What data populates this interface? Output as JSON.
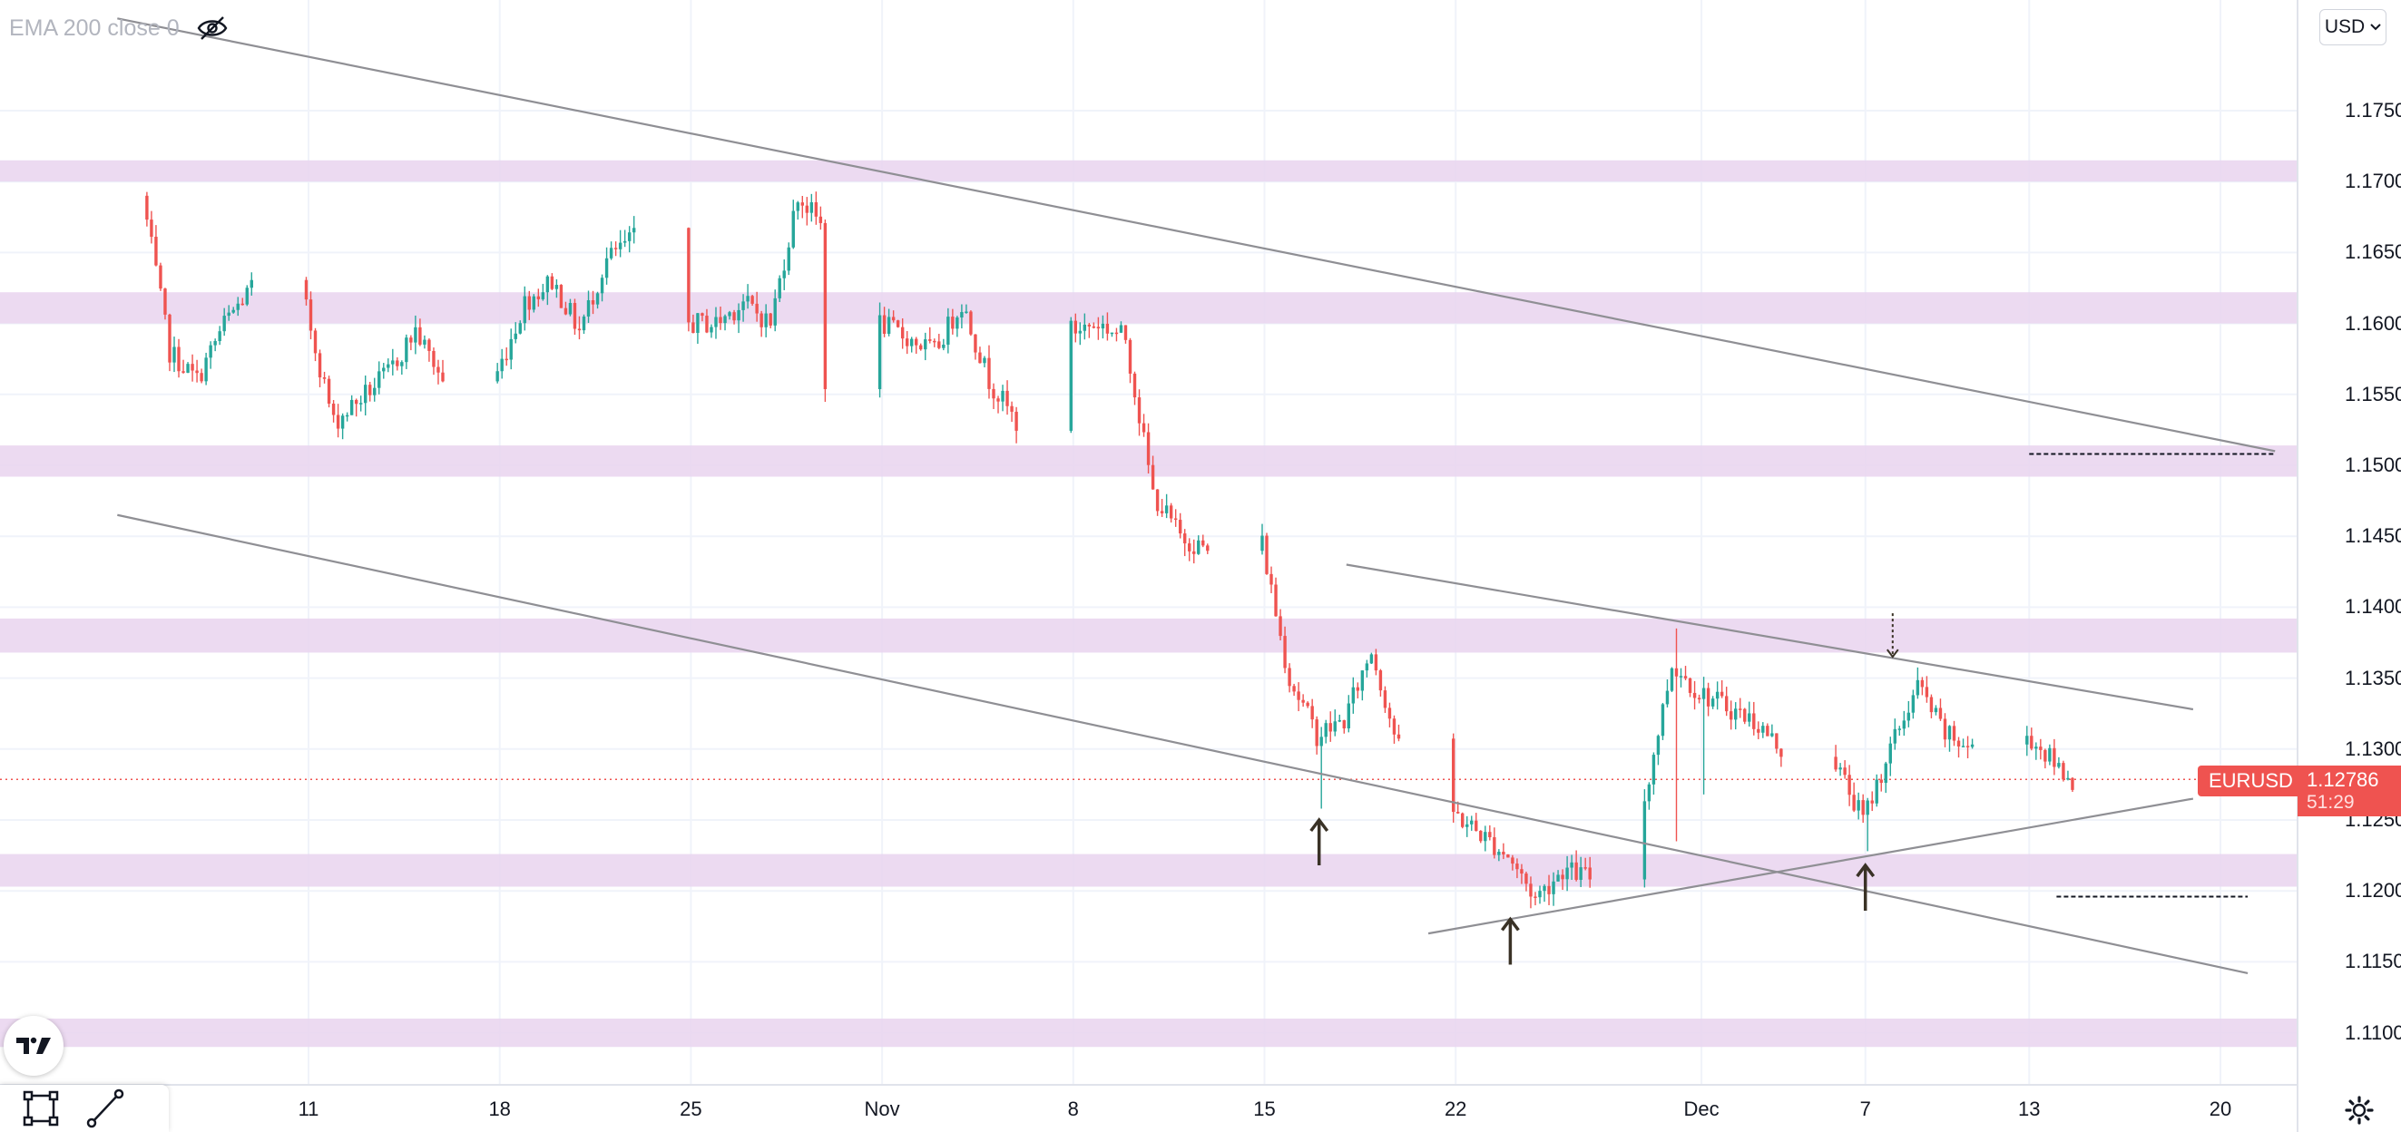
{
  "legend": {
    "indicator": "EMA 200 close 0"
  },
  "currency": {
    "label": "USD"
  },
  "symbol": {
    "name": "EURUSD",
    "last_price": "1.12786",
    "countdown": "51:29"
  },
  "colors": {
    "up": "#26a69a",
    "down": "#ef5350",
    "zone": "#e9d3ee",
    "trendline": "#8f8f94",
    "price_line": "#ef5350"
  },
  "icons": {
    "visibility": "eye-off-icon",
    "logo": "tradingview-logo-icon",
    "rectangle_tool": "rectangle-tool-icon",
    "trendline_tool": "trendline-tool-icon",
    "settings": "gear-icon",
    "currency_dropdown": "chevron-down-icon"
  },
  "chart_data": {
    "type": "candlestick",
    "interval": "4h",
    "ylim": [
      1.1075,
      1.1815
    ],
    "y_ticks": [
      "1.17500",
      "1.17000",
      "1.16500",
      "1.16000",
      "1.15500",
      "1.15000",
      "1.14500",
      "1.14000",
      "1.13500",
      "1.13000",
      "1.12500",
      "1.12000",
      "1.11500",
      "1.11000"
    ],
    "x_ticks": [
      {
        "label": "11",
        "date": "2021-10-11"
      },
      {
        "label": "18",
        "date": "2021-10-18"
      },
      {
        "label": "25",
        "date": "2021-10-25"
      },
      {
        "label": "Nov",
        "date": "2021-11-01"
      },
      {
        "label": "8",
        "date": "2021-11-08"
      },
      {
        "label": "15",
        "date": "2021-11-15"
      },
      {
        "label": "22",
        "date": "2021-11-22"
      },
      {
        "label": "Dec",
        "date": "2021-12-01"
      },
      {
        "label": "7",
        "date": "2021-12-07"
      },
      {
        "label": "13",
        "date": "2021-12-13"
      },
      {
        "label": "20",
        "date": "2021-12-20"
      }
    ],
    "waypoints": [
      {
        "date": "2021-10-05",
        "price": 1.169
      },
      {
        "date": "2021-10-06",
        "price": 1.158
      },
      {
        "date": "2021-10-07",
        "price": 1.156
      },
      {
        "date": "2021-10-08",
        "price": 1.16
      },
      {
        "date": "2021-10-09",
        "price": 1.1625
      },
      {
        "date": "2021-10-11",
        "price": 1.161
      },
      {
        "date": "2021-10-12",
        "price": 1.153
      },
      {
        "date": "2021-10-14",
        "price": 1.1565
      },
      {
        "date": "2021-10-15",
        "price": 1.1595
      },
      {
        "date": "2021-10-16",
        "price": 1.156
      },
      {
        "date": "2021-10-17",
        "price": 1.1535
      },
      {
        "date": "2021-10-18",
        "price": 1.1565
      },
      {
        "date": "2021-10-19",
        "price": 1.1615
      },
      {
        "date": "2021-10-20",
        "price": 1.163
      },
      {
        "date": "2021-10-21",
        "price": 1.1595
      },
      {
        "date": "2021-10-22",
        "price": 1.1645
      },
      {
        "date": "2021-10-23",
        "price": 1.166
      },
      {
        "date": "2021-10-24",
        "price": 1.1645
      },
      {
        "date": "2021-10-25",
        "price": 1.16
      },
      {
        "date": "2021-10-26",
        "price": 1.16
      },
      {
        "date": "2021-10-27",
        "price": 1.1615
      },
      {
        "date": "2021-10-28",
        "price": 1.16
      },
      {
        "date": "2021-10-29",
        "price": 1.169
      },
      {
        "date": "2021-10-29T20:00",
        "price": 1.167
      },
      {
        "date": "2021-10-30",
        "price": 1.156
      },
      {
        "date": "2021-11-01",
        "price": 1.16
      },
      {
        "date": "2021-11-03",
        "price": 1.158
      },
      {
        "date": "2021-11-04",
        "price": 1.1615
      },
      {
        "date": "2021-11-05",
        "price": 1.156
      },
      {
        "date": "2021-11-06",
        "price": 1.153
      },
      {
        "date": "2021-11-07",
        "price": 1.1565
      },
      {
        "date": "2021-11-08",
        "price": 1.1595
      },
      {
        "date": "2021-11-09",
        "price": 1.16
      },
      {
        "date": "2021-11-10",
        "price": 1.159
      },
      {
        "date": "2021-11-11",
        "price": 1.148
      },
      {
        "date": "2021-11-12",
        "price": 1.145
      },
      {
        "date": "2021-11-13",
        "price": 1.144
      },
      {
        "date": "2021-11-14",
        "price": 1.1455
      },
      {
        "date": "2021-11-15",
        "price": 1.1445
      },
      {
        "date": "2021-11-15T16:00",
        "price": 1.138
      },
      {
        "date": "2021-11-16",
        "price": 1.135
      },
      {
        "date": "2021-11-17",
        "price": 1.131
      },
      {
        "date": "2021-11-18",
        "price": 1.132
      },
      {
        "date": "2021-11-19",
        "price": 1.137
      },
      {
        "date": "2021-11-20",
        "price": 1.13
      },
      {
        "date": "2021-11-21",
        "price": 1.128
      },
      {
        "date": "2021-11-22",
        "price": 1.1255
      },
      {
        "date": "2021-11-23",
        "price": 1.124
      },
      {
        "date": "2021-11-24",
        "price": 1.1225
      },
      {
        "date": "2021-11-25",
        "price": 1.1195
      },
      {
        "date": "2021-11-26",
        "price": 1.1215
      },
      {
        "date": "2021-11-27",
        "price": 1.121
      },
      {
        "date": "2021-11-28",
        "price": 1.1285
      },
      {
        "date": "2021-11-29",
        "price": 1.1265
      },
      {
        "date": "2021-11-30",
        "price": 1.136
      },
      {
        "date": "2021-12-01",
        "price": 1.134
      },
      {
        "date": "2021-12-02",
        "price": 1.133
      },
      {
        "date": "2021-12-03",
        "price": 1.132
      },
      {
        "date": "2021-12-04",
        "price": 1.13
      },
      {
        "date": "2021-12-05",
        "price": 1.1295
      },
      {
        "date": "2021-12-06",
        "price": 1.129
      },
      {
        "date": "2021-12-07",
        "price": 1.125
      },
      {
        "date": "2021-12-08",
        "price": 1.13
      },
      {
        "date": "2021-12-09",
        "price": 1.1345
      },
      {
        "date": "2021-12-10",
        "price": 1.131
      },
      {
        "date": "2021-12-11",
        "price": 1.13
      },
      {
        "date": "2021-12-12",
        "price": 1.128
      },
      {
        "date": "2021-12-13",
        "price": 1.131
      },
      {
        "date": "2021-12-14",
        "price": 1.129
      },
      {
        "date": "2021-12-14T16:00",
        "price": 1.1279
      }
    ],
    "wick_spikes": [
      {
        "date": "2021-11-17",
        "low": 1.1258
      },
      {
        "date": "2021-11-30",
        "high": 1.1385,
        "low": 1.1235
      },
      {
        "date": "2021-12-01",
        "low": 1.1268
      },
      {
        "date": "2021-12-07",
        "low": 1.1228
      }
    ],
    "zones": [
      {
        "from": 1.17,
        "to": 1.1715
      },
      {
        "from": 1.16,
        "to": 1.1622
      },
      {
        "from": 1.1492,
        "to": 1.1514
      },
      {
        "from": 1.1368,
        "to": 1.1392
      },
      {
        "from": 1.1203,
        "to": 1.1226
      },
      {
        "from": 1.109,
        "to": 1.111
      }
    ],
    "trendlines": [
      {
        "from": {
          "date": "2021-10-04",
          "price": 1.1815
        },
        "to": {
          "date": "2021-12-22",
          "price": 1.151
        }
      },
      {
        "from": {
          "date": "2021-10-04",
          "price": 1.1465
        },
        "to": {
          "date": "2021-12-21",
          "price": 1.1142
        }
      },
      {
        "from": {
          "date": "2021-11-18",
          "price": 1.143
        },
        "to": {
          "date": "2021-12-19",
          "price": 1.1328
        }
      },
      {
        "from": {
          "date": "2021-11-21",
          "price": 1.117
        },
        "to": {
          "date": "2021-12-19",
          "price": 1.1265
        }
      }
    ],
    "dashed_levels": [
      {
        "from": "2021-12-13",
        "to": "2021-12-22",
        "price": 1.1508
      },
      {
        "from": "2021-12-14",
        "to": "2021-12-21",
        "price": 1.1196
      }
    ],
    "arrows": [
      {
        "date": "2021-11-17",
        "price": 1.125,
        "direction": "up"
      },
      {
        "date": "2021-11-24",
        "price": 1.118,
        "direction": "up"
      },
      {
        "date": "2021-12-07",
        "price": 1.1218,
        "direction": "up"
      },
      {
        "date": "2021-12-08",
        "price": 1.1365,
        "direction": "down"
      }
    ]
  }
}
